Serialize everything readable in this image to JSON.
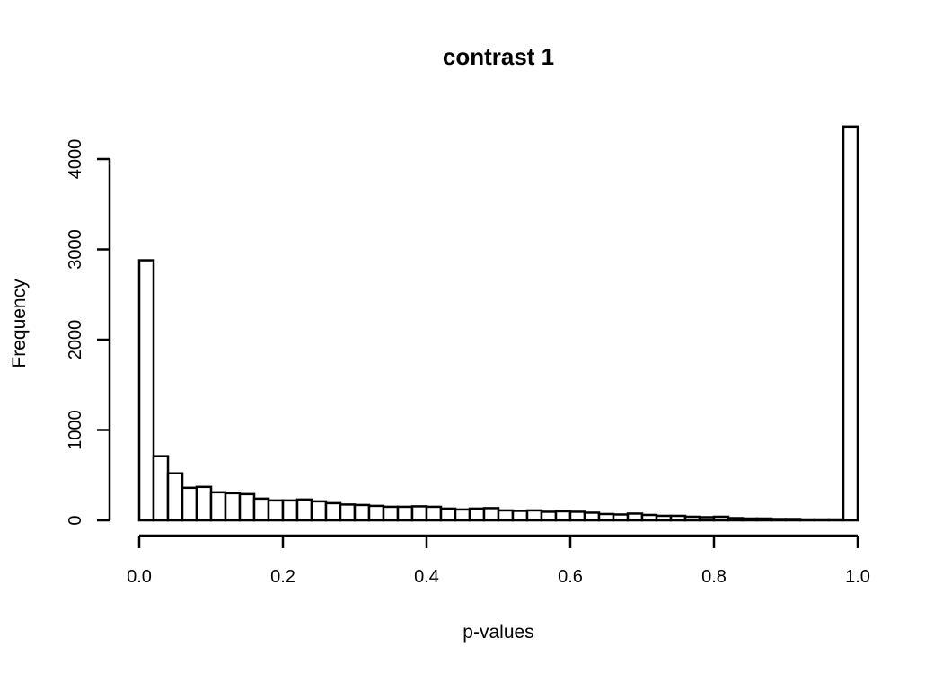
{
  "chart_data": {
    "type": "bar",
    "title": "contrast 1",
    "xlabel": "p-values",
    "ylabel": "Frequency",
    "xlim": [
      0,
      1
    ],
    "ylim": [
      0,
      4400
    ],
    "x_ticks": [
      0.0,
      0.2,
      0.4,
      0.6,
      0.8,
      1.0
    ],
    "x_tick_labels": [
      "0.0",
      "0.2",
      "0.4",
      "0.6",
      "0.8",
      "1.0"
    ],
    "y_ticks": [
      0,
      1000,
      2000,
      3000,
      4000
    ],
    "y_tick_labels": [
      "0",
      "1000",
      "2000",
      "3000",
      "4000"
    ],
    "bin_width": 0.02,
    "values": [
      2880,
      710,
      520,
      360,
      370,
      310,
      300,
      290,
      240,
      220,
      220,
      230,
      210,
      190,
      175,
      170,
      160,
      150,
      150,
      155,
      150,
      130,
      120,
      130,
      135,
      110,
      105,
      110,
      95,
      100,
      95,
      85,
      70,
      65,
      75,
      60,
      50,
      50,
      40,
      35,
      40,
      25,
      20,
      20,
      15,
      15,
      10,
      10,
      10,
      4360
    ],
    "grid": false
  }
}
